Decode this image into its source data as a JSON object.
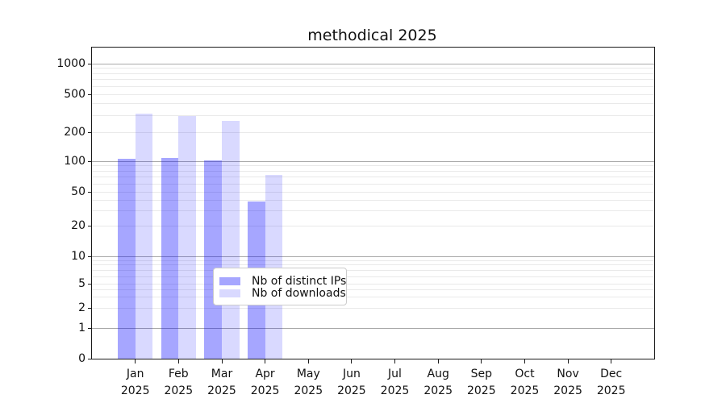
{
  "title": "methodical 2025",
  "chart_data": {
    "type": "bar",
    "title": "methodical 2025",
    "scale": "symlog",
    "grid": "both",
    "legend_position": "lower-center",
    "xlabel": "",
    "ylabel": "",
    "ylim": [
      0,
      1400
    ],
    "yticks": [
      0,
      1,
      2,
      5,
      10,
      20,
      50,
      100,
      200,
      500,
      1000
    ],
    "categories": [
      "Jan 2025",
      "Feb 2025",
      "Mar 2025",
      "Apr 2025",
      "May 2025",
      "Jun 2025",
      "Jul 2025",
      "Aug 2025",
      "Sep 2025",
      "Oct 2025",
      "Nov 2025",
      "Dec 2025"
    ],
    "series": [
      {
        "name": "Nb of distinct IPs",
        "color": "rgba(0,0,255,0.35)",
        "values": [
          106,
          107,
          102,
          38,
          0,
          0,
          0,
          0,
          0,
          0,
          0,
          0
        ]
      },
      {
        "name": "Nb of downloads",
        "color": "rgba(0,0,255,0.15)",
        "values": [
          310,
          293,
          258,
          73,
          0,
          0,
          0,
          0,
          0,
          0,
          0,
          0
        ]
      }
    ]
  },
  "colors": {
    "bar_distinct_ips": "rgba(0,0,255,0.35)",
    "bar_downloads": "rgba(0,0,255,0.15)",
    "grid_major": "#a9a9a9",
    "grid_minor": "#e9e9e9",
    "axis": "#1a1a1a",
    "text": "#111111",
    "legend_border": "#cccccc"
  }
}
